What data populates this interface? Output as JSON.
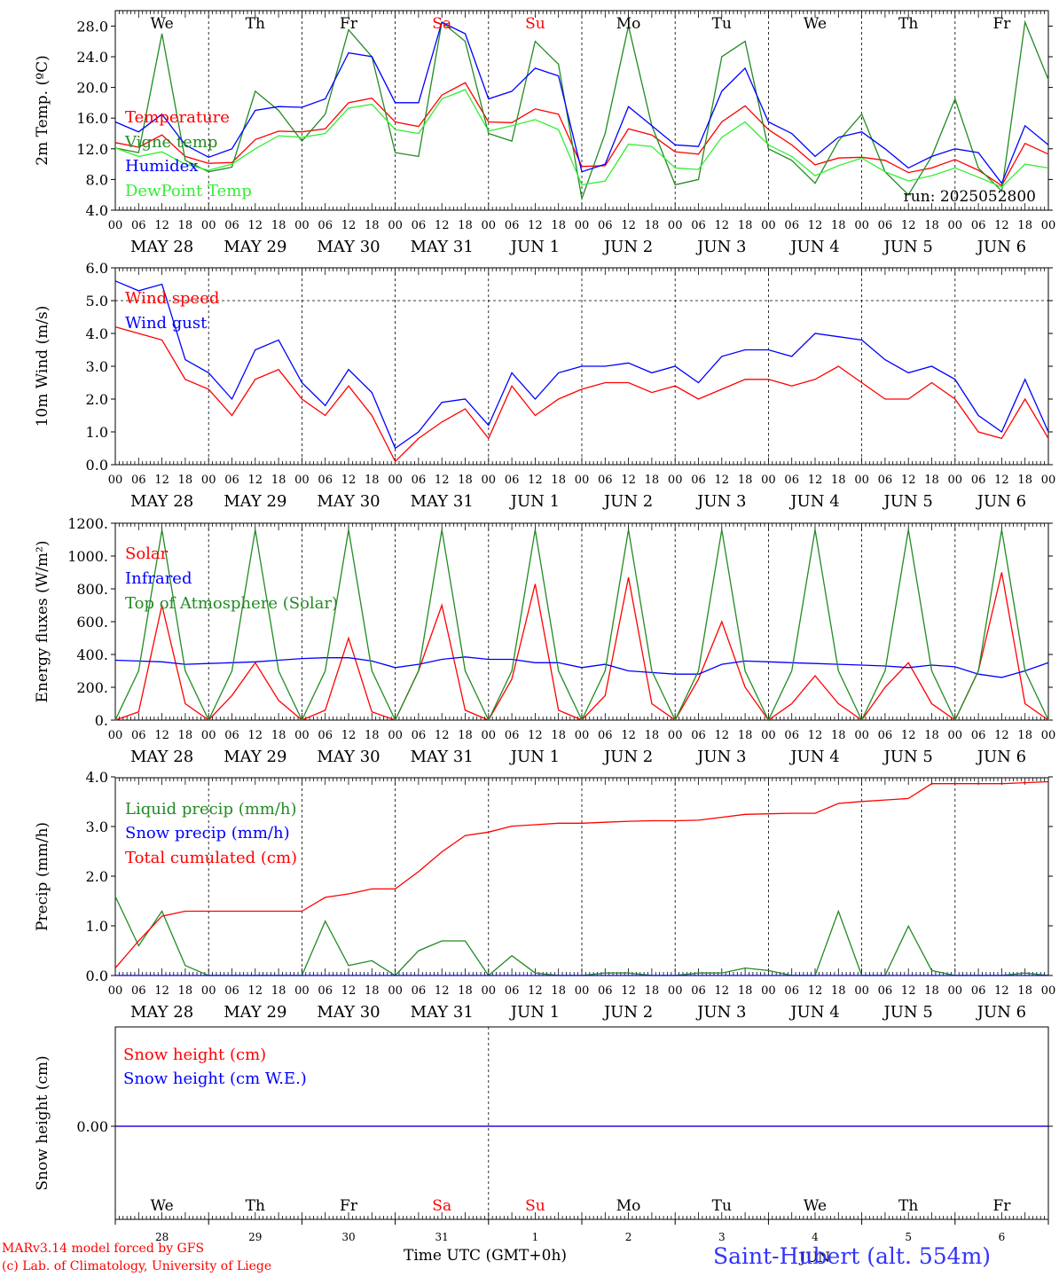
{
  "run_label": "run: 2025052800",
  "weekdays": [
    {
      "label": "We",
      "color": "#000000"
    },
    {
      "label": "Th",
      "color": "#000000"
    },
    {
      "label": "Fr",
      "color": "#000000"
    },
    {
      "label": "Sa",
      "color": "#ff0000"
    },
    {
      "label": "Su",
      "color": "#ff0000"
    },
    {
      "label": "Mo",
      "color": "#000000"
    },
    {
      "label": "Tu",
      "color": "#000000"
    },
    {
      "label": "We",
      "color": "#000000"
    },
    {
      "label": "Th",
      "color": "#000000"
    },
    {
      "label": "Fr",
      "color": "#000000"
    }
  ],
  "date_labels": [
    "MAY 28",
    "MAY 29",
    "MAY 30",
    "MAY 31",
    "JUN  1",
    "JUN  2",
    "JUN  3",
    "JUN  4",
    "JUN  5",
    "JUN  6"
  ],
  "hour_ticks": [
    "00",
    "06",
    "12",
    "18"
  ],
  "hour_end": "00",
  "day_numbers": [
    "28",
    "29",
    "30",
    "31",
    "1",
    "2",
    "3",
    "4",
    "5",
    "6"
  ],
  "month_label": "JUN",
  "footer": {
    "credit_line1": "MARv3.14 model forced by GFS",
    "credit_line2": "(c) Lab. of Climatology, University of Liege",
    "x_title": "Time UTC (GMT+0h)",
    "station": "Saint-Hubert (alt. 554m)"
  },
  "colors": {
    "red": "#ff0000",
    "darkgreen": "#228b22",
    "blue": "#0000ff",
    "lightgreen": "#33ee33",
    "station": "#3333ff"
  },
  "chart_data": [
    {
      "type": "line",
      "ylabel": "2m Temp. (ºC)",
      "ylim": [
        4,
        30
      ],
      "yticks": [
        "4.0",
        "8.0",
        "12.0",
        "16.0",
        "20.0",
        "24.0",
        "28.0"
      ],
      "x_unit": "hours since May 28 00 UTC",
      "x": [
        0,
        6,
        12,
        18,
        24,
        30,
        36,
        42,
        48,
        54,
        60,
        66,
        72,
        78,
        84,
        90,
        96,
        102,
        108,
        114,
        120,
        126,
        132,
        138,
        144,
        150,
        156,
        162,
        168,
        174,
        180,
        186,
        192,
        198,
        204,
        210,
        216,
        222,
        228,
        234,
        240
      ],
      "series": [
        {
          "name": "Temperature",
          "color": "red",
          "values": [
            12.8,
            12.2,
            13.8,
            11.0,
            10.1,
            10.2,
            13.2,
            14.3,
            14.2,
            14.6,
            18.0,
            18.6,
            15.5,
            14.9,
            19.0,
            20.6,
            15.5,
            15.4,
            17.2,
            16.5,
            9.7,
            9.8,
            14.6,
            13.8,
            11.6,
            11.3,
            15.5,
            17.6,
            14.5,
            12.5,
            9.9,
            10.8,
            10.9,
            10.5,
            8.9,
            9.5,
            10.6,
            9.2,
            7.2,
            12.7,
            11.3
          ]
        },
        {
          "name": "Vigne temp",
          "color": "darkgreen",
          "values": [
            12.1,
            11.5,
            27.0,
            10.5,
            9.0,
            9.6,
            19.5,
            17.0,
            13.0,
            16.5,
            27.5,
            24.0,
            11.5,
            11.0,
            28.5,
            26.0,
            14.0,
            13.0,
            26.0,
            23.0,
            5.5,
            14.0,
            28.0,
            15.0,
            7.3,
            8.0,
            24.0,
            26.0,
            12.0,
            10.5,
            7.5,
            13.0,
            16.5,
            9.0,
            6.0,
            11.0,
            18.5,
            9.5,
            6.5,
            28.5,
            21.0
          ]
        },
        {
          "name": "Humidex",
          "color": "blue",
          "values": [
            15.5,
            14.2,
            16.5,
            12.5,
            10.9,
            12.0,
            17.0,
            17.5,
            17.4,
            18.5,
            24.5,
            24.0,
            18.0,
            18.0,
            28.5,
            27.0,
            18.5,
            19.5,
            22.5,
            21.5,
            9.0,
            10.0,
            17.5,
            15.0,
            12.5,
            12.3,
            19.5,
            22.5,
            15.5,
            14.0,
            11.0,
            13.5,
            14.2,
            12.0,
            9.5,
            11.0,
            12.0,
            11.5,
            7.5,
            15.0,
            12.5
          ]
        },
        {
          "name": "DewPoint Temp",
          "color": "lightgreen",
          "values": [
            12.1,
            11.0,
            11.6,
            10.0,
            9.2,
            10.0,
            12.0,
            13.7,
            13.5,
            14.0,
            17.3,
            17.8,
            14.5,
            14.0,
            18.5,
            19.7,
            14.3,
            15.0,
            15.8,
            14.5,
            7.3,
            7.8,
            12.6,
            12.3,
            9.5,
            9.3,
            13.5,
            15.5,
            12.5,
            11.0,
            8.5,
            9.8,
            10.8,
            9.0,
            7.8,
            8.5,
            9.5,
            8.3,
            7.0,
            10.0,
            9.5
          ]
        }
      ]
    },
    {
      "type": "line",
      "ylabel": "10m Wind (m/s)",
      "ylim": [
        0,
        6
      ],
      "yticks": [
        "0.0",
        "1.0",
        "2.0",
        "3.0",
        "4.0",
        "5.0",
        "6.0"
      ],
      "reference_line": 5,
      "x": [
        0,
        6,
        12,
        18,
        24,
        30,
        36,
        42,
        48,
        54,
        60,
        66,
        72,
        78,
        84,
        90,
        96,
        102,
        108,
        114,
        120,
        126,
        132,
        138,
        144,
        150,
        156,
        162,
        168,
        174,
        180,
        186,
        192,
        198,
        204,
        210,
        216,
        222,
        228,
        234,
        240
      ],
      "series": [
        {
          "name": "Wind speed",
          "color": "red",
          "values": [
            4.2,
            4.0,
            3.8,
            2.6,
            2.3,
            1.5,
            2.6,
            2.9,
            2.0,
            1.5,
            2.4,
            1.5,
            0.1,
            0.8,
            1.3,
            1.7,
            0.8,
            2.4,
            1.5,
            2.0,
            2.3,
            2.5,
            2.5,
            2.2,
            2.4,
            2.0,
            2.3,
            2.6,
            2.6,
            2.4,
            2.6,
            3.0,
            2.5,
            2.0,
            2.0,
            2.5,
            2.0,
            1.0,
            0.8,
            2.0,
            0.8
          ]
        },
        {
          "name": "Wind gust",
          "color": "blue",
          "values": [
            5.6,
            5.3,
            5.5,
            3.2,
            2.8,
            2.0,
            3.5,
            3.8,
            2.5,
            1.8,
            2.9,
            2.2,
            0.5,
            1.0,
            1.9,
            2.0,
            1.2,
            2.8,
            2.0,
            2.8,
            3.0,
            3.0,
            3.1,
            2.8,
            3.0,
            2.5,
            3.3,
            3.5,
            3.5,
            3.3,
            4.0,
            3.9,
            3.8,
            3.2,
            2.8,
            3.0,
            2.6,
            1.5,
            1.0,
            2.6,
            1.0
          ]
        }
      ]
    },
    {
      "type": "line",
      "ylabel": "Energy fluxes (W/m²)",
      "ylim": [
        0,
        1200
      ],
      "yticks": [
        "0.",
        "200.",
        "400.",
        "600.",
        "800.",
        "1000.",
        "1200."
      ],
      "x": [
        0,
        6,
        12,
        18,
        24,
        30,
        36,
        42,
        48,
        54,
        60,
        66,
        72,
        78,
        84,
        90,
        96,
        102,
        108,
        114,
        120,
        126,
        132,
        138,
        144,
        150,
        156,
        162,
        168,
        174,
        180,
        186,
        192,
        198,
        204,
        210,
        216,
        222,
        228,
        234,
        240
      ],
      "series": [
        {
          "name": "Solar",
          "color": "red",
          "values": [
            0,
            50,
            700,
            100,
            0,
            150,
            350,
            120,
            0,
            60,
            500,
            50,
            0,
            300,
            700,
            60,
            0,
            250,
            830,
            60,
            0,
            150,
            870,
            100,
            0,
            250,
            600,
            200,
            0,
            100,
            270,
            100,
            0,
            200,
            350,
            100,
            0,
            300,
            900,
            100,
            0
          ]
        },
        {
          "name": "Infrared",
          "color": "blue",
          "values": [
            365,
            360,
            355,
            340,
            345,
            350,
            355,
            365,
            375,
            380,
            380,
            360,
            320,
            340,
            370,
            385,
            370,
            370,
            350,
            350,
            320,
            340,
            300,
            290,
            280,
            280,
            340,
            360,
            355,
            350,
            345,
            340,
            335,
            330,
            320,
            335,
            325,
            280,
            260,
            300,
            350
          ]
        },
        {
          "name": "Top of Atmosphere (Solar)",
          "color": "darkgreen",
          "values": [
            0,
            300,
            1160,
            300,
            0,
            300,
            1160,
            300,
            0,
            300,
            1160,
            300,
            0,
            300,
            1160,
            300,
            0,
            300,
            1160,
            300,
            0,
            300,
            1160,
            300,
            0,
            300,
            1160,
            300,
            0,
            300,
            1160,
            300,
            0,
            300,
            1160,
            300,
            0,
            300,
            1160,
            300,
            0
          ]
        }
      ]
    },
    {
      "type": "line",
      "ylabel": "Precip (mm/h)",
      "ylim": [
        0,
        4
      ],
      "yticks": [
        "0.0",
        "1.0",
        "2.0",
        "3.0",
        "4.0"
      ],
      "x": [
        0,
        6,
        12,
        18,
        24,
        30,
        36,
        42,
        48,
        54,
        60,
        66,
        72,
        78,
        84,
        90,
        96,
        102,
        108,
        114,
        120,
        126,
        132,
        138,
        144,
        150,
        156,
        162,
        168,
        174,
        180,
        186,
        192,
        198,
        204,
        210,
        216,
        222,
        228,
        234,
        240
      ],
      "series": [
        {
          "name": "Liquid precip (mm/h)",
          "color": "darkgreen",
          "values": [
            1.6,
            0.6,
            1.3,
            0.2,
            0.0,
            0.0,
            0.0,
            0.0,
            0.0,
            1.1,
            0.2,
            0.3,
            0.0,
            0.5,
            0.7,
            0.7,
            0.0,
            0.4,
            0.05,
            0.0,
            0.0,
            0.05,
            0.05,
            0.0,
            0.0,
            0.05,
            0.05,
            0.15,
            0.1,
            0.0,
            0.0,
            1.3,
            0.0,
            0.0,
            1.0,
            0.1,
            0.0,
            0.0,
            0.0,
            0.05,
            0.0
          ]
        },
        {
          "name": "Snow precip (mm/h)",
          "color": "blue",
          "values": [
            0,
            0,
            0,
            0,
            0,
            0,
            0,
            0,
            0,
            0,
            0,
            0,
            0,
            0,
            0,
            0,
            0,
            0,
            0,
            0,
            0,
            0,
            0,
            0,
            0,
            0,
            0,
            0,
            0,
            0,
            0,
            0,
            0,
            0,
            0,
            0,
            0,
            0,
            0,
            0,
            0
          ]
        },
        {
          "name": "Total cumulated (cm)",
          "color": "red",
          "values": [
            0.15,
            0.7,
            1.2,
            1.3,
            1.3,
            1.3,
            1.3,
            1.3,
            1.3,
            1.58,
            1.65,
            1.75,
            1.75,
            2.1,
            2.5,
            2.83,
            2.9,
            3.02,
            3.05,
            3.08,
            3.08,
            3.1,
            3.12,
            3.13,
            3.13,
            3.14,
            3.2,
            3.26,
            3.27,
            3.28,
            3.28,
            3.48,
            3.52,
            3.55,
            3.58,
            3.88,
            3.88,
            3.88,
            3.88,
            3.9,
            3.92
          ]
        }
      ]
    },
    {
      "type": "line",
      "ylabel": "Snow height (cm)",
      "yticks": [
        "0.00"
      ],
      "x": [
        0,
        240
      ],
      "series": [
        {
          "name": "Snow height (cm)",
          "color": "red",
          "values": [
            0,
            0
          ]
        },
        {
          "name": "Snow height (cm W.E.)",
          "color": "blue",
          "values": [
            0,
            0
          ]
        }
      ]
    }
  ]
}
